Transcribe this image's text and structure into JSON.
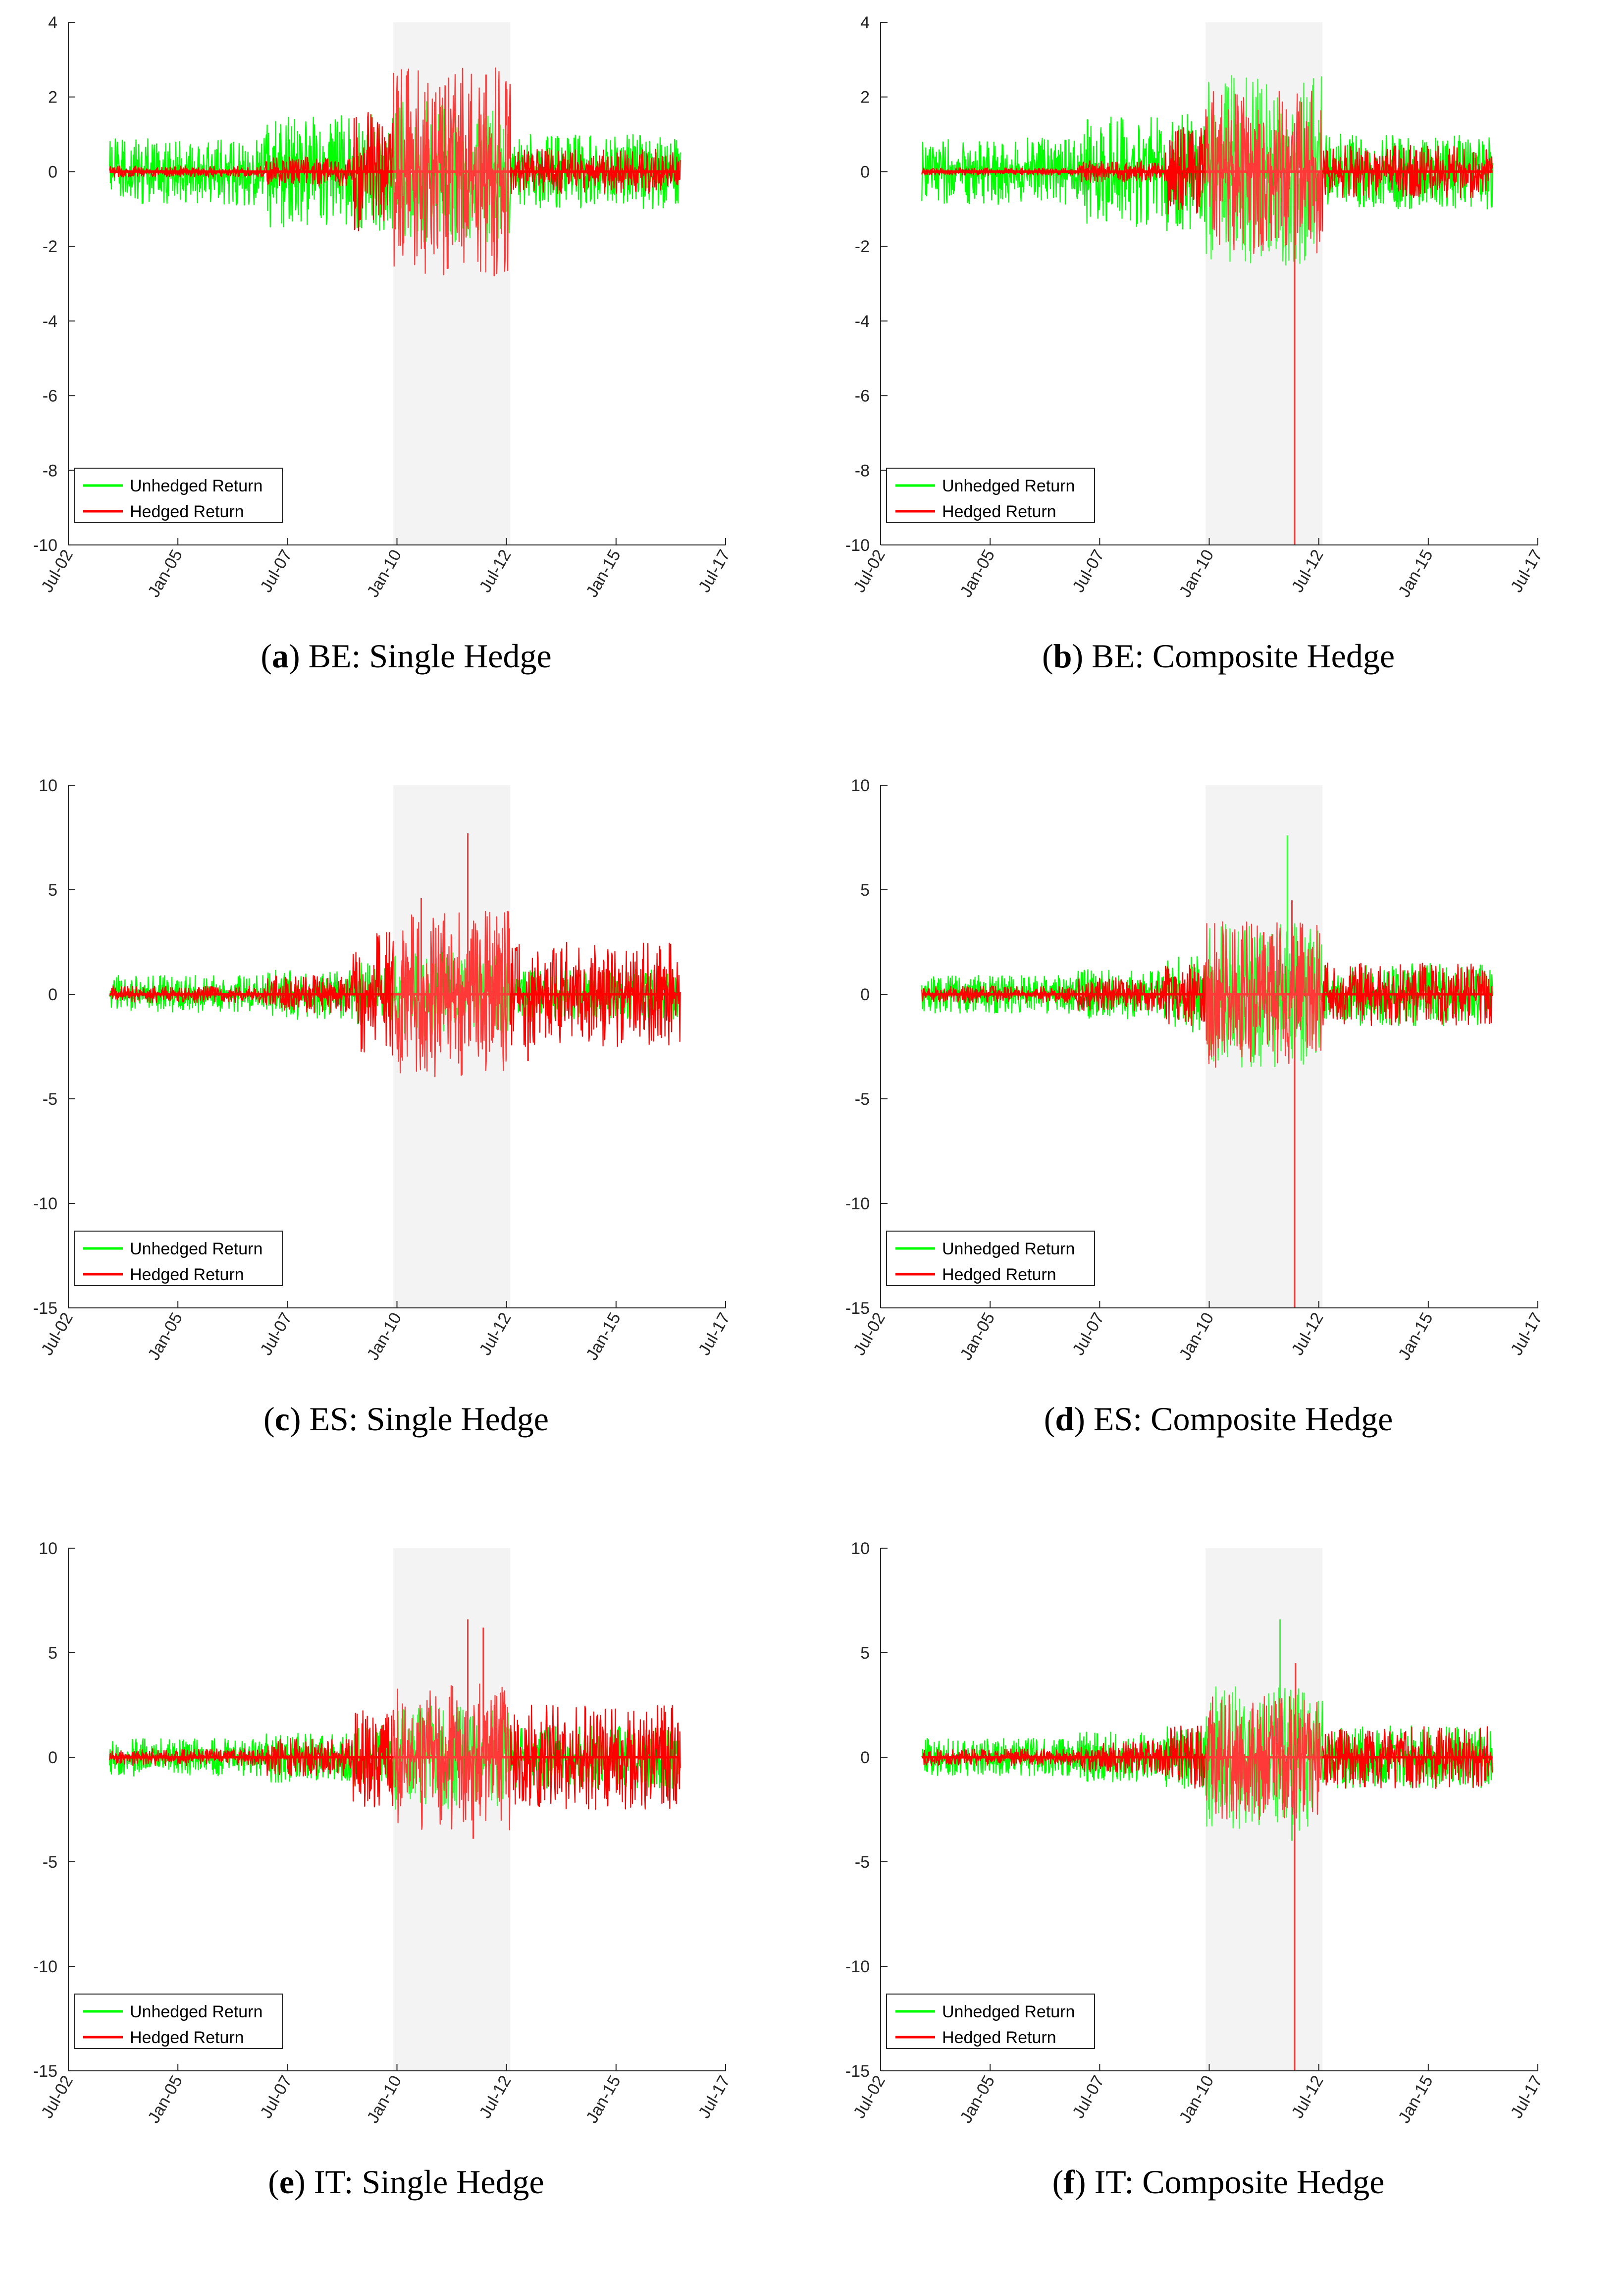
{
  "colors": {
    "unhedged": "#00ff00",
    "hedged": "#ff0000",
    "shade": "#f0f0f0"
  },
  "legend": [
    "Unhedged Return",
    "Hedged Return"
  ],
  "chart_data": [
    {
      "id": "a",
      "letter": "a",
      "caption_text": "BE: Single Hedge",
      "type": "line",
      "x_ticks": [
        "Jul-02",
        "Jan-05",
        "Jul-07",
        "Jan-10",
        "Jul-12",
        "Jan-15",
        "Jul-17"
      ],
      "y_ticks": [
        "4",
        "2",
        "0",
        "-2",
        "-4",
        "-6",
        "-8",
        "-10"
      ],
      "ylim": [
        -10,
        4
      ],
      "shaded_period": [
        "Dec-09",
        "Aug-12"
      ],
      "series": [
        {
          "name": "Unhedged Return",
          "amplitude_by_period": [
            0.9,
            1.5,
            1.6,
            1.9,
            1.0
          ],
          "extremes": []
        },
        {
          "name": "Hedged Return",
          "amplitude_by_period": [
            0.15,
            0.4,
            1.6,
            2.8,
            0.6
          ],
          "extremes": [
            {
              "x": "Jan-12",
              "y": 2.6
            },
            {
              "x": "Mar-12",
              "y": -2.8
            }
          ]
        }
      ]
    },
    {
      "id": "b",
      "letter": "b",
      "caption_text": "BE: Composite Hedge",
      "type": "line",
      "x_ticks": [
        "Jul-02",
        "Jan-05",
        "Jul-07",
        "Jan-10",
        "Jul-12",
        "Jan-15",
        "Jul-17"
      ],
      "y_ticks": [
        "4",
        "2",
        "0",
        "-2",
        "-4",
        "-6",
        "-8",
        "-10"
      ],
      "ylim": [
        -10,
        4
      ],
      "shaded_period": [
        "Dec-09",
        "Aug-12"
      ],
      "series": [
        {
          "name": "Unhedged Return",
          "amplitude_by_period": [
            0.9,
            1.5,
            1.6,
            2.6,
            1.0
          ],
          "extremes": []
        },
        {
          "name": "Hedged Return",
          "amplitude_by_period": [
            0.1,
            0.3,
            1.2,
            2.2,
            0.7
          ],
          "extremes": [
            {
              "x": "Dec-11",
              "y": -10.0
            }
          ]
        }
      ]
    },
    {
      "id": "c",
      "letter": "c",
      "caption_text": "ES: Single Hedge",
      "type": "line",
      "x_ticks": [
        "Jul-02",
        "Jan-05",
        "Jul-07",
        "Jan-10",
        "Jul-12",
        "Jan-15",
        "Jul-17"
      ],
      "y_ticks": [
        "10",
        "5",
        "0",
        "-5",
        "-10",
        "-15"
      ],
      "ylim": [
        -15,
        10
      ],
      "shaded_period": [
        "Dec-09",
        "Aug-12"
      ],
      "series": [
        {
          "name": "Unhedged Return",
          "amplitude_by_period": [
            0.9,
            1.2,
            1.5,
            2.0,
            1.2
          ],
          "extremes": []
        },
        {
          "name": "Hedged Return",
          "amplitude_by_period": [
            0.4,
            0.9,
            3.0,
            4.0,
            2.5
          ],
          "extremes": [
            {
              "x": "Aug-11",
              "y": 7.7
            },
            {
              "x": "Jul-10",
              "y": 4.6
            },
            {
              "x": "Dec-12",
              "y": -3.2
            }
          ]
        }
      ]
    },
    {
      "id": "d",
      "letter": "d",
      "caption_text": "ES: Composite Hedge",
      "type": "line",
      "x_ticks": [
        "Jul-02",
        "Jan-05",
        "Jul-07",
        "Jan-10",
        "Jul-12",
        "Jan-15",
        "Jul-17"
      ],
      "y_ticks": [
        "10",
        "5",
        "0",
        "-5",
        "-10",
        "-15"
      ],
      "ylim": [
        -15,
        10
      ],
      "shaded_period": [
        "Dec-09",
        "Aug-12"
      ],
      "series": [
        {
          "name": "Unhedged Return",
          "amplitude_by_period": [
            0.9,
            1.2,
            1.8,
            3.5,
            1.5
          ],
          "extremes": [
            {
              "x": "Oct-11",
              "y": 7.6
            }
          ]
        },
        {
          "name": "Hedged Return",
          "amplitude_by_period": [
            0.4,
            0.8,
            1.5,
            3.5,
            1.5
          ],
          "extremes": [
            {
              "x": "Dec-11",
              "y": -15.0
            },
            {
              "x": "Nov-11",
              "y": 4.5
            }
          ]
        }
      ]
    },
    {
      "id": "e",
      "letter": "e",
      "caption_text": "IT: Single Hedge",
      "type": "line",
      "x_ticks": [
        "Jul-02",
        "Jan-05",
        "Jul-07",
        "Jan-10",
        "Jul-12",
        "Jan-15",
        "Jul-17"
      ],
      "y_ticks": [
        "10",
        "5",
        "0",
        "-5",
        "-10",
        "-15"
      ],
      "ylim": [
        -15,
        10
      ],
      "shaded_period": [
        "Dec-09",
        "Aug-12"
      ],
      "series": [
        {
          "name": "Unhedged Return",
          "amplitude_by_period": [
            0.9,
            1.2,
            1.5,
            2.5,
            1.5
          ],
          "extremes": []
        },
        {
          "name": "Hedged Return",
          "amplitude_by_period": [
            0.4,
            0.9,
            2.5,
            3.5,
            2.5
          ],
          "extremes": [
            {
              "x": "Aug-11",
              "y": 6.6
            },
            {
              "x": "Dec-11",
              "y": 6.2
            },
            {
              "x": "Sep-11",
              "y": -3.9
            }
          ]
        }
      ]
    },
    {
      "id": "f",
      "letter": "f",
      "caption_text": "IT: Composite Hedge",
      "type": "line",
      "x_ticks": [
        "Jul-02",
        "Jan-05",
        "Jul-07",
        "Jan-10",
        "Jul-12",
        "Jan-15",
        "Jul-17"
      ],
      "y_ticks": [
        "10",
        "5",
        "0",
        "-5",
        "-10",
        "-15"
      ],
      "ylim": [
        -15,
        10
      ],
      "shaded_period": [
        "Dec-09",
        "Aug-12"
      ],
      "series": [
        {
          "name": "Unhedged Return",
          "amplitude_by_period": [
            0.9,
            1.2,
            1.5,
            3.5,
            1.5
          ],
          "extremes": [
            {
              "x": "Aug-11",
              "y": 6.6
            },
            {
              "x": "Nov-11",
              "y": -4.0
            }
          ]
        },
        {
          "name": "Hedged Return",
          "amplitude_by_period": [
            0.4,
            0.8,
            1.5,
            3.0,
            1.5
          ],
          "extremes": [
            {
              "x": "Dec-11",
              "y": -15.0
            },
            {
              "x": "Dec-11",
              "y": 4.5
            }
          ]
        }
      ]
    }
  ]
}
